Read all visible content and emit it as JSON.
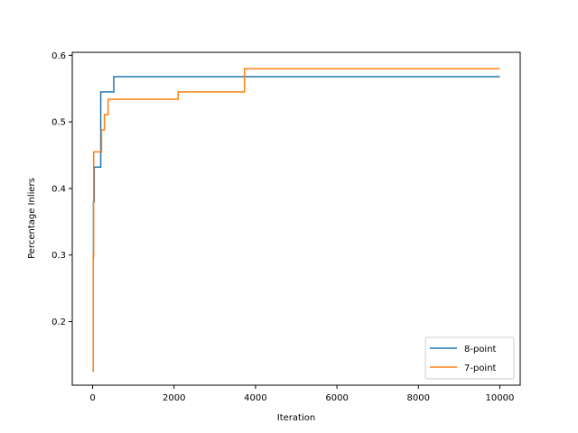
{
  "chart_data": {
    "type": "line",
    "title": "",
    "xlabel": "Iteration",
    "ylabel": "Percentage Inliers",
    "xlim": [
      -500,
      10500
    ],
    "ylim": [
      0.1045,
      0.6045
    ],
    "xticks": [
      0,
      2000,
      4000,
      6000,
      8000,
      10000
    ],
    "yticks": [
      0.2,
      0.3,
      0.4,
      0.5,
      0.6
    ],
    "xtick_labels": [
      "0",
      "2000",
      "4000",
      "6000",
      "8000",
      "10000"
    ],
    "ytick_labels": [
      "0.2",
      "0.3",
      "0.4",
      "0.5",
      "0.6"
    ],
    "grid": false,
    "legend_position": "lower-right",
    "step": true,
    "series": [
      {
        "name": "8-point",
        "color": "#1f77b4",
        "points": [
          [
            0,
            0.295
          ],
          [
            20,
            0.38
          ],
          [
            40,
            0.432
          ],
          [
            200,
            0.545
          ],
          [
            520,
            0.568
          ],
          [
            10000,
            0.568
          ]
        ]
      },
      {
        "name": "7-point",
        "color": "#ff7f0e",
        "points": [
          [
            0,
            0.125
          ],
          [
            15,
            0.3
          ],
          [
            25,
            0.455
          ],
          [
            220,
            0.488
          ],
          [
            290,
            0.511
          ],
          [
            380,
            0.534
          ],
          [
            2100,
            0.545
          ],
          [
            3730,
            0.58
          ],
          [
            10000,
            0.58
          ]
        ]
      }
    ]
  }
}
